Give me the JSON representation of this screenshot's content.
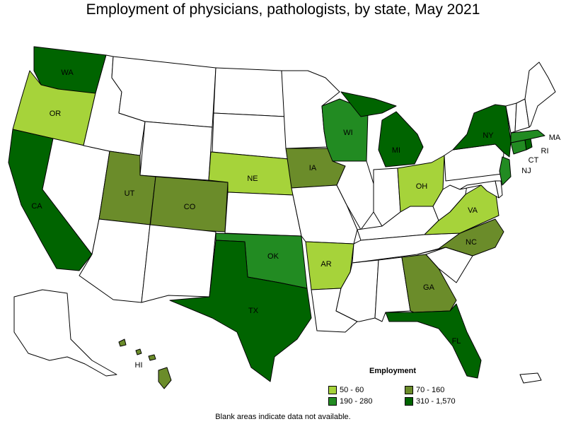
{
  "title": "Employment of physicians, pathologists, by state, May 2021",
  "note": "Blank areas indicate data not available.",
  "legend": {
    "title": "Employment",
    "items": [
      {
        "label": "50 - 60",
        "color": "#a6d33a"
      },
      {
        "label": "70 - 160",
        "color": "#6b8c2a"
      },
      {
        "label": "190 - 280",
        "color": "#228b22"
      },
      {
        "label": "310 - 1,570",
        "color": "#006400"
      }
    ]
  },
  "colors": {
    "none": "#ffffff",
    "c1": "#a6d33a",
    "c2": "#6b8c2a",
    "c3": "#228b22",
    "c4": "#006400"
  },
  "state_labels": {
    "WA": "WA",
    "OR": "OR",
    "CA": "CA",
    "UT": "UT",
    "CO": "CO",
    "NE": "NE",
    "IA": "IA",
    "WI": "WI",
    "MI": "MI",
    "OH": "OH",
    "NY": "NY",
    "MA": "MA",
    "RI": "RI",
    "CT": "CT",
    "NJ": "NJ",
    "VA": "VA",
    "NC": "NC",
    "GA": "GA",
    "FL": "FL",
    "OK": "OK",
    "AR": "AR",
    "TX": "TX",
    "HI": "HI"
  }
}
